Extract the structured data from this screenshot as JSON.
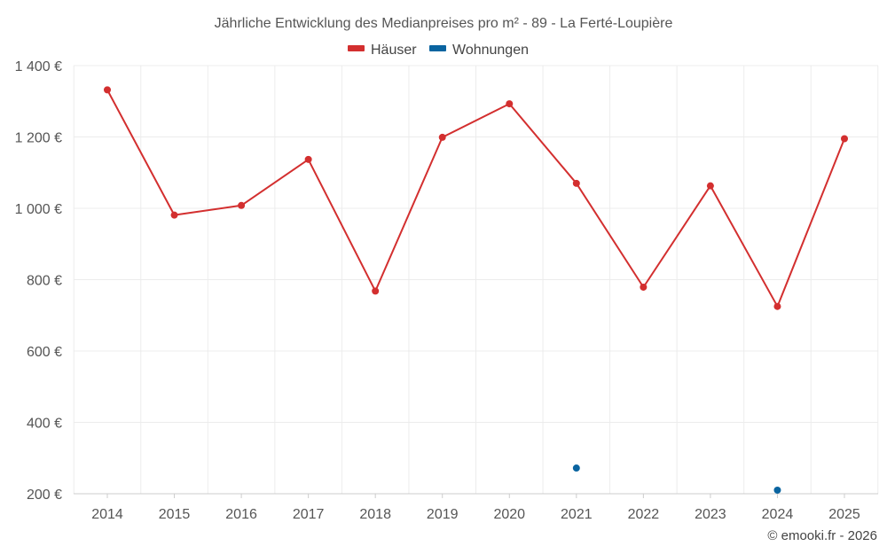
{
  "chart_data": {
    "type": "line",
    "title": "Jährliche Entwicklung des Medianpreises pro m² - 89 - La Ferté-Loupière",
    "categories": [
      "2014",
      "2015",
      "2016",
      "2017",
      "2018",
      "2019",
      "2020",
      "2021",
      "2022",
      "2023",
      "2024",
      "2025"
    ],
    "series": [
      {
        "name": "Häuser",
        "color": "#d32f2f",
        "values": [
          1332,
          981,
          1008,
          1137,
          768,
          1199,
          1293,
          1070,
          779,
          1063,
          725,
          1195
        ]
      },
      {
        "name": "Wohnungen",
        "color": "#0a64a0",
        "values": [
          null,
          null,
          null,
          null,
          null,
          null,
          null,
          272,
          null,
          null,
          210,
          null
        ]
      }
    ],
    "y_ticks": [
      {
        "value": 200,
        "label": "200 €"
      },
      {
        "value": 400,
        "label": "400 €"
      },
      {
        "value": 600,
        "label": "600 €"
      },
      {
        "value": 800,
        "label": "800 €"
      },
      {
        "value": 1000,
        "label": "1 000 €"
      },
      {
        "value": 1200,
        "label": "1 200 €"
      },
      {
        "value": 1400,
        "label": "1 400 €"
      }
    ],
    "ylim": [
      200,
      1400
    ],
    "xlabel": "",
    "ylabel": "",
    "grid": true,
    "legend_position": "top-center",
    "credit": "© emooki.fr - 2026"
  }
}
